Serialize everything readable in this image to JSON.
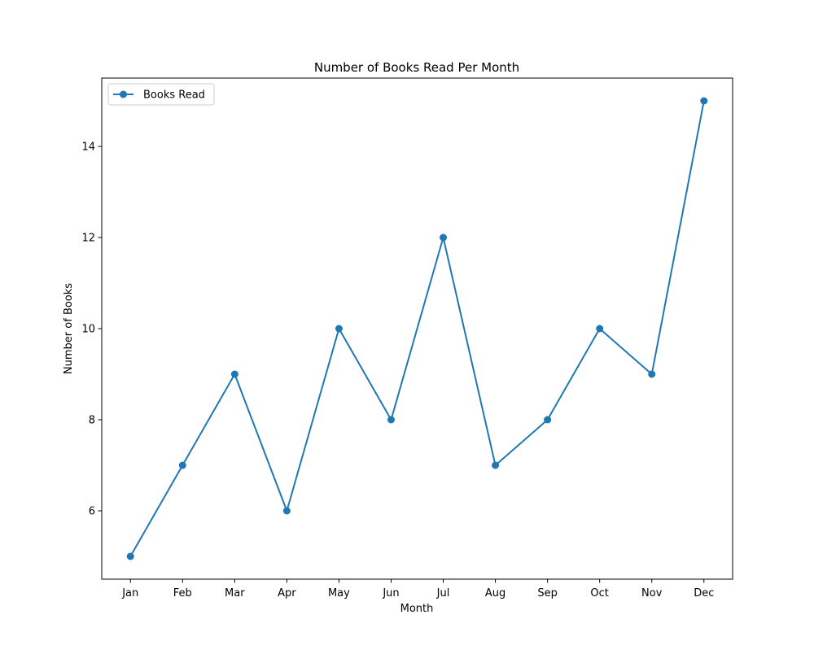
{
  "chart_data": {
    "type": "line",
    "title": "Number of Books Read Per Month",
    "xlabel": "Month",
    "ylabel": "Number of Books",
    "categories": [
      "Jan",
      "Feb",
      "Mar",
      "Apr",
      "May",
      "Jun",
      "Jul",
      "Aug",
      "Sep",
      "Oct",
      "Nov",
      "Dec"
    ],
    "series": [
      {
        "name": "Books Read",
        "values": [
          5,
          7,
          9,
          6,
          10,
          8,
          12,
          7,
          8,
          10,
          9,
          15
        ],
        "color": "#1f77b4",
        "marker": "circle"
      }
    ],
    "yticks": [
      6,
      8,
      10,
      12,
      14
    ],
    "ylim": [
      4.5,
      15.5
    ],
    "grid": false,
    "legend_position": "top-left"
  }
}
